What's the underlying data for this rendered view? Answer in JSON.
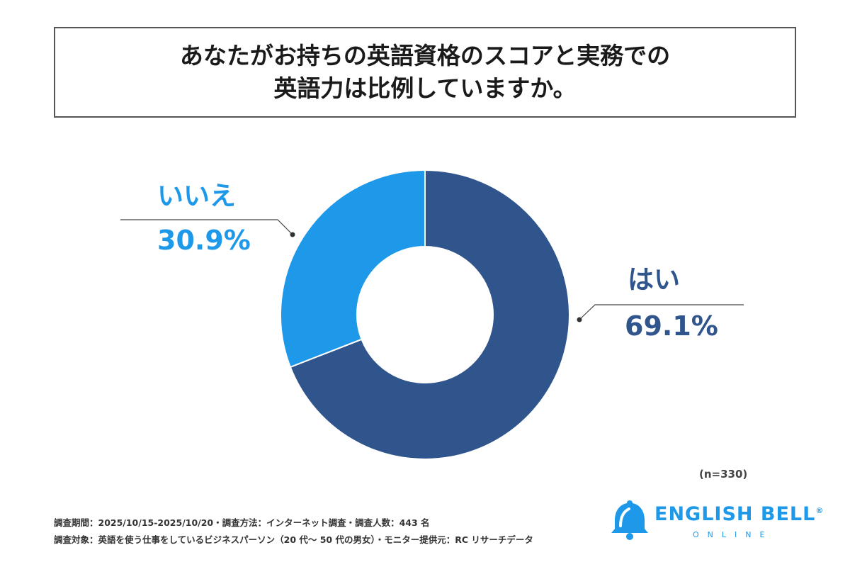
{
  "title": {
    "line1": "あなたがお持ちの英語資格のスコアと実務での",
    "line2": "英語力は比例していますか。"
  },
  "chart_data": {
    "type": "pie",
    "donut": true,
    "categories": [
      "はい",
      "いいえ"
    ],
    "values": [
      69.1,
      30.9
    ],
    "value_labels": [
      "69.1%",
      "30.9%"
    ],
    "colors": [
      "#2f558c",
      "#1e98e8"
    ],
    "sample_size": "(n=330)"
  },
  "footnotes": {
    "line1": "調査期間：2025/10/15-2025/10/20・調査方法：インターネット調査・調査人数：443 名",
    "line2": "調査対象：英語を使う仕事をしているビジネスパーソン（20 代〜 50 代の男女）・モニター提供元：RC リサーチデータ"
  },
  "logo": {
    "main": "ENGLISH BELL",
    "registered": "®",
    "sub": "ONLINE",
    "icon": "bell-icon"
  }
}
